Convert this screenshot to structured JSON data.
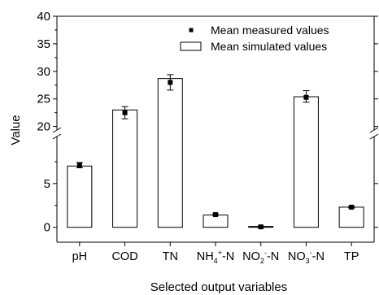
{
  "chart_data": {
    "type": "bar",
    "title": "",
    "xlabel": "Selected output variables",
    "ylabel": "Value",
    "categories": [
      "pH",
      "COD",
      "TN",
      "NH4+-N",
      "NO2--N",
      "NO3--N",
      "TP"
    ],
    "category_labels": [
      {
        "base": "pH"
      },
      {
        "base": "COD"
      },
      {
        "base": "TN"
      },
      {
        "base": "NH",
        "sub": "4",
        "sup": "+",
        "suffix": "-N"
      },
      {
        "base": "NO",
        "sub": "2",
        "sup": "-",
        "suffix": "-N"
      },
      {
        "base": "NO",
        "sub": "3",
        "sup": "-",
        "suffix": "-N"
      },
      {
        "base": "TP"
      }
    ],
    "series": [
      {
        "name": "Mean simulated values",
        "style": "open-bar",
        "values": [
          7.0,
          23.0,
          28.7,
          1.4,
          0.1,
          25.4,
          2.3
        ]
      },
      {
        "name": "Mean measured values",
        "style": "square-marker-with-errorbar",
        "values": [
          7.1,
          22.5,
          28.0,
          1.45,
          0.05,
          25.3,
          2.3
        ],
        "error_low": [
          0.3,
          1.1,
          1.4,
          0.1,
          0.1,
          0.9,
          0.1
        ],
        "error_high": [
          0.3,
          1.1,
          1.4,
          0.1,
          0.1,
          1.2,
          0.1
        ]
      }
    ],
    "y_axis_break": {
      "lower_range": [
        -1.7,
        10.0
      ],
      "lower_ticks": [
        0,
        5
      ],
      "upper_range": [
        19.8,
        40
      ],
      "upper_ticks": [
        20,
        25,
        30,
        35,
        40
      ]
    },
    "legend_position": "top-right",
    "grid": false
  }
}
